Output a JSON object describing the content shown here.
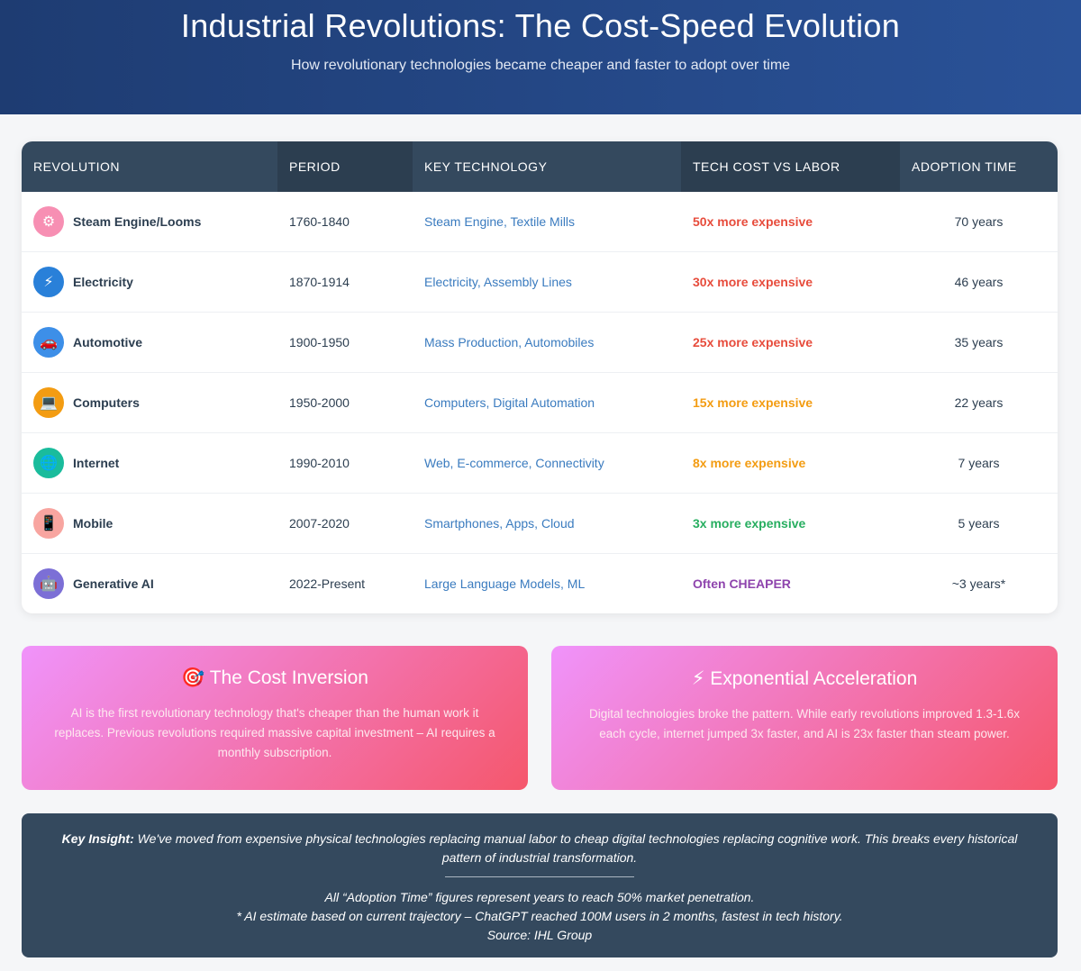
{
  "header": {
    "title": "Industrial Revolutions: The Cost-Speed Evolution",
    "subtitle": "How revolutionary technologies became cheaper and faster to adopt over time"
  },
  "table": {
    "columns": [
      "REVOLUTION",
      "PERIOD",
      "KEY TECHNOLOGY",
      "TECH COST VS LABOR",
      "ADOPTION TIME"
    ],
    "rows": [
      {
        "icon": "gear-icon",
        "glyph": "⚙",
        "icon_bg": "#f78fb3",
        "revolution": "Steam Engine/Looms",
        "period": "1760-1840",
        "technology": "Steam Engine, Textile Mills",
        "cost": "50x more expensive",
        "cost_color": "#e74c3c",
        "adoption": "70 years"
      },
      {
        "icon": "lightning-icon",
        "glyph": "⚡",
        "icon_bg": "#2980d9",
        "revolution": "Electricity",
        "period": "1870-1914",
        "technology": "Electricity, Assembly Lines",
        "cost": "30x more expensive",
        "cost_color": "#e74c3c",
        "adoption": "46 years"
      },
      {
        "icon": "car-icon",
        "glyph": "🚗",
        "icon_bg": "#3d8fe8",
        "revolution": "Automotive",
        "period": "1900-1950",
        "technology": "Mass Production, Automobiles",
        "cost": "25x more expensive",
        "cost_color": "#e74c3c",
        "adoption": "35 years"
      },
      {
        "icon": "computer-icon",
        "glyph": "💻",
        "icon_bg": "#f39c12",
        "revolution": "Computers",
        "period": "1950-2000",
        "technology": "Computers, Digital Automation",
        "cost": "15x more expensive",
        "cost_color": "#f39c12",
        "adoption": "22 years"
      },
      {
        "icon": "globe-icon",
        "glyph": "🌐",
        "icon_bg": "#1abc9c",
        "revolution": "Internet",
        "period": "1990-2010",
        "technology": "Web, E-commerce, Connectivity",
        "cost": "8x more expensive",
        "cost_color": "#f39c12",
        "adoption": "7 years"
      },
      {
        "icon": "mobile-phone-icon",
        "glyph": "📱",
        "icon_bg": "#f8a5a0",
        "revolution": "Mobile",
        "period": "2007-2020",
        "technology": "Smartphones, Apps, Cloud",
        "cost": "3x more expensive",
        "cost_color": "#27ae60",
        "adoption": "5 years"
      },
      {
        "icon": "robot-icon",
        "glyph": "🤖",
        "icon_bg": "#7c6fd6",
        "revolution": "Generative AI",
        "period": "2022-Present",
        "technology": "Large Language Models, ML",
        "cost": "Often CHEAPER",
        "cost_color": "#8e44ad",
        "adoption": "~3 years*"
      }
    ]
  },
  "cards": [
    {
      "icon": "target-icon",
      "glyph": "🎯",
      "title": "The Cost Inversion",
      "text": "AI is the first revolutionary technology that's cheaper than the human work it replaces. Previous revolutions required massive capital investment – AI requires a monthly subscription."
    },
    {
      "icon": "lightning-icon",
      "glyph": "⚡",
      "title": "Exponential Acceleration",
      "text": "Digital technologies broke the pattern. While early revolutions improved 1.3-1.6x each cycle, internet jumped 3x faster, and AI is 23x faster than steam power."
    }
  ],
  "insight": {
    "label": "Key Insight:",
    "text": " We've moved from expensive physical technologies replacing manual labor to cheap digital technologies replacing cognitive work. This breaks every historical pattern of industrial transformation.",
    "note1": "All “Adoption Time” figures represent years to reach 50% market penetration.",
    "note2": "* AI estimate based on current trajectory – ChatGPT reached 100M users in 2 months, fastest in tech history.",
    "source": "Source: IHL Group"
  }
}
